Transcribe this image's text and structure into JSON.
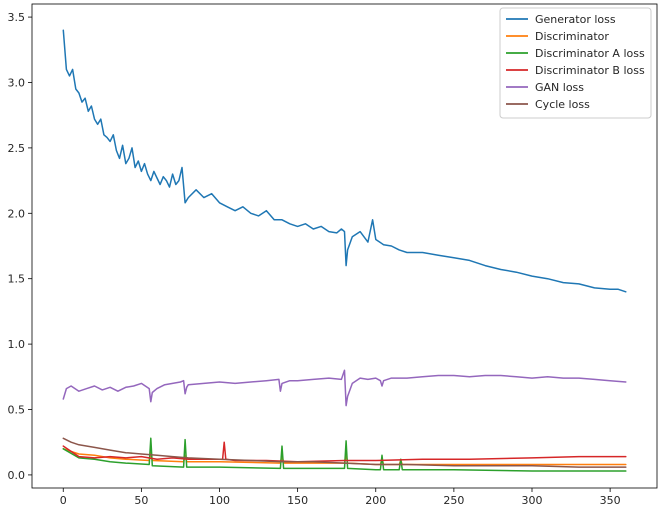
{
  "chart_data": {
    "type": "line",
    "title": "",
    "xlabel": "",
    "ylabel": "",
    "xlim": [
      -20,
      380
    ],
    "ylim": [
      -0.1,
      3.6
    ],
    "xticks": [
      0,
      50,
      100,
      150,
      200,
      250,
      300,
      350
    ],
    "yticks": [
      0.0,
      0.5,
      1.0,
      1.5,
      2.0,
      2.5,
      3.0,
      3.5
    ],
    "grid": false,
    "legend_position": "top-right",
    "series": [
      {
        "name": "Generator loss",
        "color": "#1f77b4",
        "x": [
          0,
          2,
          4,
          6,
          8,
          10,
          12,
          14,
          16,
          18,
          20,
          22,
          24,
          26,
          28,
          30,
          32,
          34,
          36,
          38,
          40,
          42,
          44,
          46,
          48,
          50,
          52,
          54,
          56,
          58,
          60,
          62,
          64,
          66,
          68,
          70,
          72,
          74,
          76,
          78,
          80,
          85,
          90,
          95,
          100,
          105,
          110,
          115,
          120,
          125,
          130,
          135,
          140,
          145,
          150,
          155,
          160,
          165,
          170,
          175,
          178,
          180,
          181,
          182,
          185,
          190,
          195,
          198,
          200,
          205,
          210,
          215,
          220,
          230,
          240,
          250,
          260,
          270,
          280,
          290,
          300,
          310,
          320,
          330,
          340,
          350,
          355,
          360
        ],
        "y": [
          3.4,
          3.1,
          3.05,
          3.1,
          2.95,
          2.92,
          2.85,
          2.88,
          2.78,
          2.82,
          2.72,
          2.68,
          2.72,
          2.6,
          2.58,
          2.55,
          2.6,
          2.48,
          2.42,
          2.52,
          2.38,
          2.42,
          2.5,
          2.35,
          2.4,
          2.32,
          2.38,
          2.3,
          2.25,
          2.32,
          2.27,
          2.22,
          2.28,
          2.25,
          2.2,
          2.3,
          2.22,
          2.25,
          2.35,
          2.08,
          2.12,
          2.18,
          2.12,
          2.15,
          2.08,
          2.05,
          2.02,
          2.05,
          2.0,
          1.98,
          2.02,
          1.95,
          1.95,
          1.92,
          1.9,
          1.92,
          1.88,
          1.9,
          1.86,
          1.85,
          1.88,
          1.86,
          1.6,
          1.72,
          1.82,
          1.86,
          1.78,
          1.95,
          1.8,
          1.76,
          1.75,
          1.72,
          1.7,
          1.7,
          1.68,
          1.66,
          1.64,
          1.6,
          1.57,
          1.55,
          1.52,
          1.5,
          1.47,
          1.46,
          1.43,
          1.42,
          1.42,
          1.4
        ]
      },
      {
        "name": "Discriminator",
        "color": "#ff7f0e",
        "x": [
          0,
          10,
          20,
          30,
          40,
          55,
          56,
          57,
          77,
          78,
          79,
          100,
          139,
          140,
          141,
          180,
          181,
          182,
          200,
          203,
          204,
          205,
          215,
          216,
          217,
          250,
          300,
          360
        ],
        "y": [
          0.2,
          0.16,
          0.15,
          0.13,
          0.12,
          0.11,
          0.17,
          0.11,
          0.1,
          0.15,
          0.1,
          0.1,
          0.09,
          0.15,
          0.09,
          0.09,
          0.16,
          0.09,
          0.08,
          0.08,
          0.12,
          0.08,
          0.08,
          0.11,
          0.08,
          0.08,
          0.08,
          0.08
        ]
      },
      {
        "name": "Discriminator A loss",
        "color": "#2ca02c",
        "x": [
          0,
          10,
          20,
          30,
          40,
          55,
          56,
          57,
          77,
          78,
          79,
          100,
          139,
          140,
          141,
          180,
          181,
          182,
          200,
          203,
          204,
          205,
          215,
          216,
          217,
          250,
          300,
          360
        ],
        "y": [
          0.2,
          0.13,
          0.12,
          0.1,
          0.09,
          0.08,
          0.28,
          0.07,
          0.06,
          0.27,
          0.06,
          0.06,
          0.05,
          0.22,
          0.05,
          0.05,
          0.26,
          0.05,
          0.04,
          0.04,
          0.15,
          0.04,
          0.04,
          0.12,
          0.04,
          0.04,
          0.03,
          0.03
        ]
      },
      {
        "name": "Discriminator B loss",
        "color": "#d62728",
        "x": [
          0,
          10,
          20,
          30,
          40,
          50,
          60,
          70,
          80,
          90,
          100,
          102,
          103,
          104,
          110,
          130,
          150,
          180,
          200,
          230,
          260,
          300,
          330,
          360
        ],
        "y": [
          0.22,
          0.14,
          0.13,
          0.14,
          0.13,
          0.14,
          0.12,
          0.13,
          0.12,
          0.12,
          0.12,
          0.12,
          0.25,
          0.12,
          0.11,
          0.11,
          0.1,
          0.11,
          0.11,
          0.12,
          0.12,
          0.13,
          0.14,
          0.14
        ]
      },
      {
        "name": "GAN loss",
        "color": "#9467bd",
        "x": [
          0,
          2,
          5,
          10,
          15,
          20,
          25,
          30,
          35,
          40,
          45,
          50,
          55,
          56,
          57,
          60,
          65,
          70,
          75,
          77,
          78,
          79,
          80,
          90,
          100,
          110,
          120,
          130,
          138,
          139,
          140,
          145,
          150,
          160,
          170,
          178,
          180,
          181,
          182,
          185,
          190,
          195,
          200,
          203,
          204,
          205,
          210,
          220,
          230,
          240,
          250,
          260,
          270,
          280,
          290,
          300,
          310,
          320,
          330,
          340,
          350,
          360
        ],
        "y": [
          0.58,
          0.66,
          0.68,
          0.64,
          0.66,
          0.68,
          0.65,
          0.67,
          0.64,
          0.67,
          0.68,
          0.7,
          0.66,
          0.56,
          0.63,
          0.66,
          0.69,
          0.7,
          0.71,
          0.72,
          0.62,
          0.67,
          0.69,
          0.7,
          0.71,
          0.7,
          0.71,
          0.72,
          0.73,
          0.64,
          0.7,
          0.72,
          0.72,
          0.73,
          0.74,
          0.73,
          0.8,
          0.53,
          0.6,
          0.7,
          0.74,
          0.73,
          0.74,
          0.72,
          0.68,
          0.72,
          0.74,
          0.74,
          0.75,
          0.76,
          0.76,
          0.75,
          0.76,
          0.76,
          0.75,
          0.74,
          0.75,
          0.74,
          0.74,
          0.73,
          0.72,
          0.71
        ]
      },
      {
        "name": "Cycle loss",
        "color": "#8c564b",
        "x": [
          0,
          5,
          10,
          20,
          30,
          40,
          50,
          60,
          70,
          80,
          100,
          120,
          140,
          160,
          180,
          200,
          220,
          250,
          280,
          300,
          330,
          360
        ],
        "y": [
          0.28,
          0.25,
          0.23,
          0.21,
          0.19,
          0.17,
          0.16,
          0.15,
          0.14,
          0.13,
          0.12,
          0.11,
          0.1,
          0.1,
          0.09,
          0.08,
          0.08,
          0.07,
          0.07,
          0.07,
          0.06,
          0.06
        ]
      }
    ]
  }
}
